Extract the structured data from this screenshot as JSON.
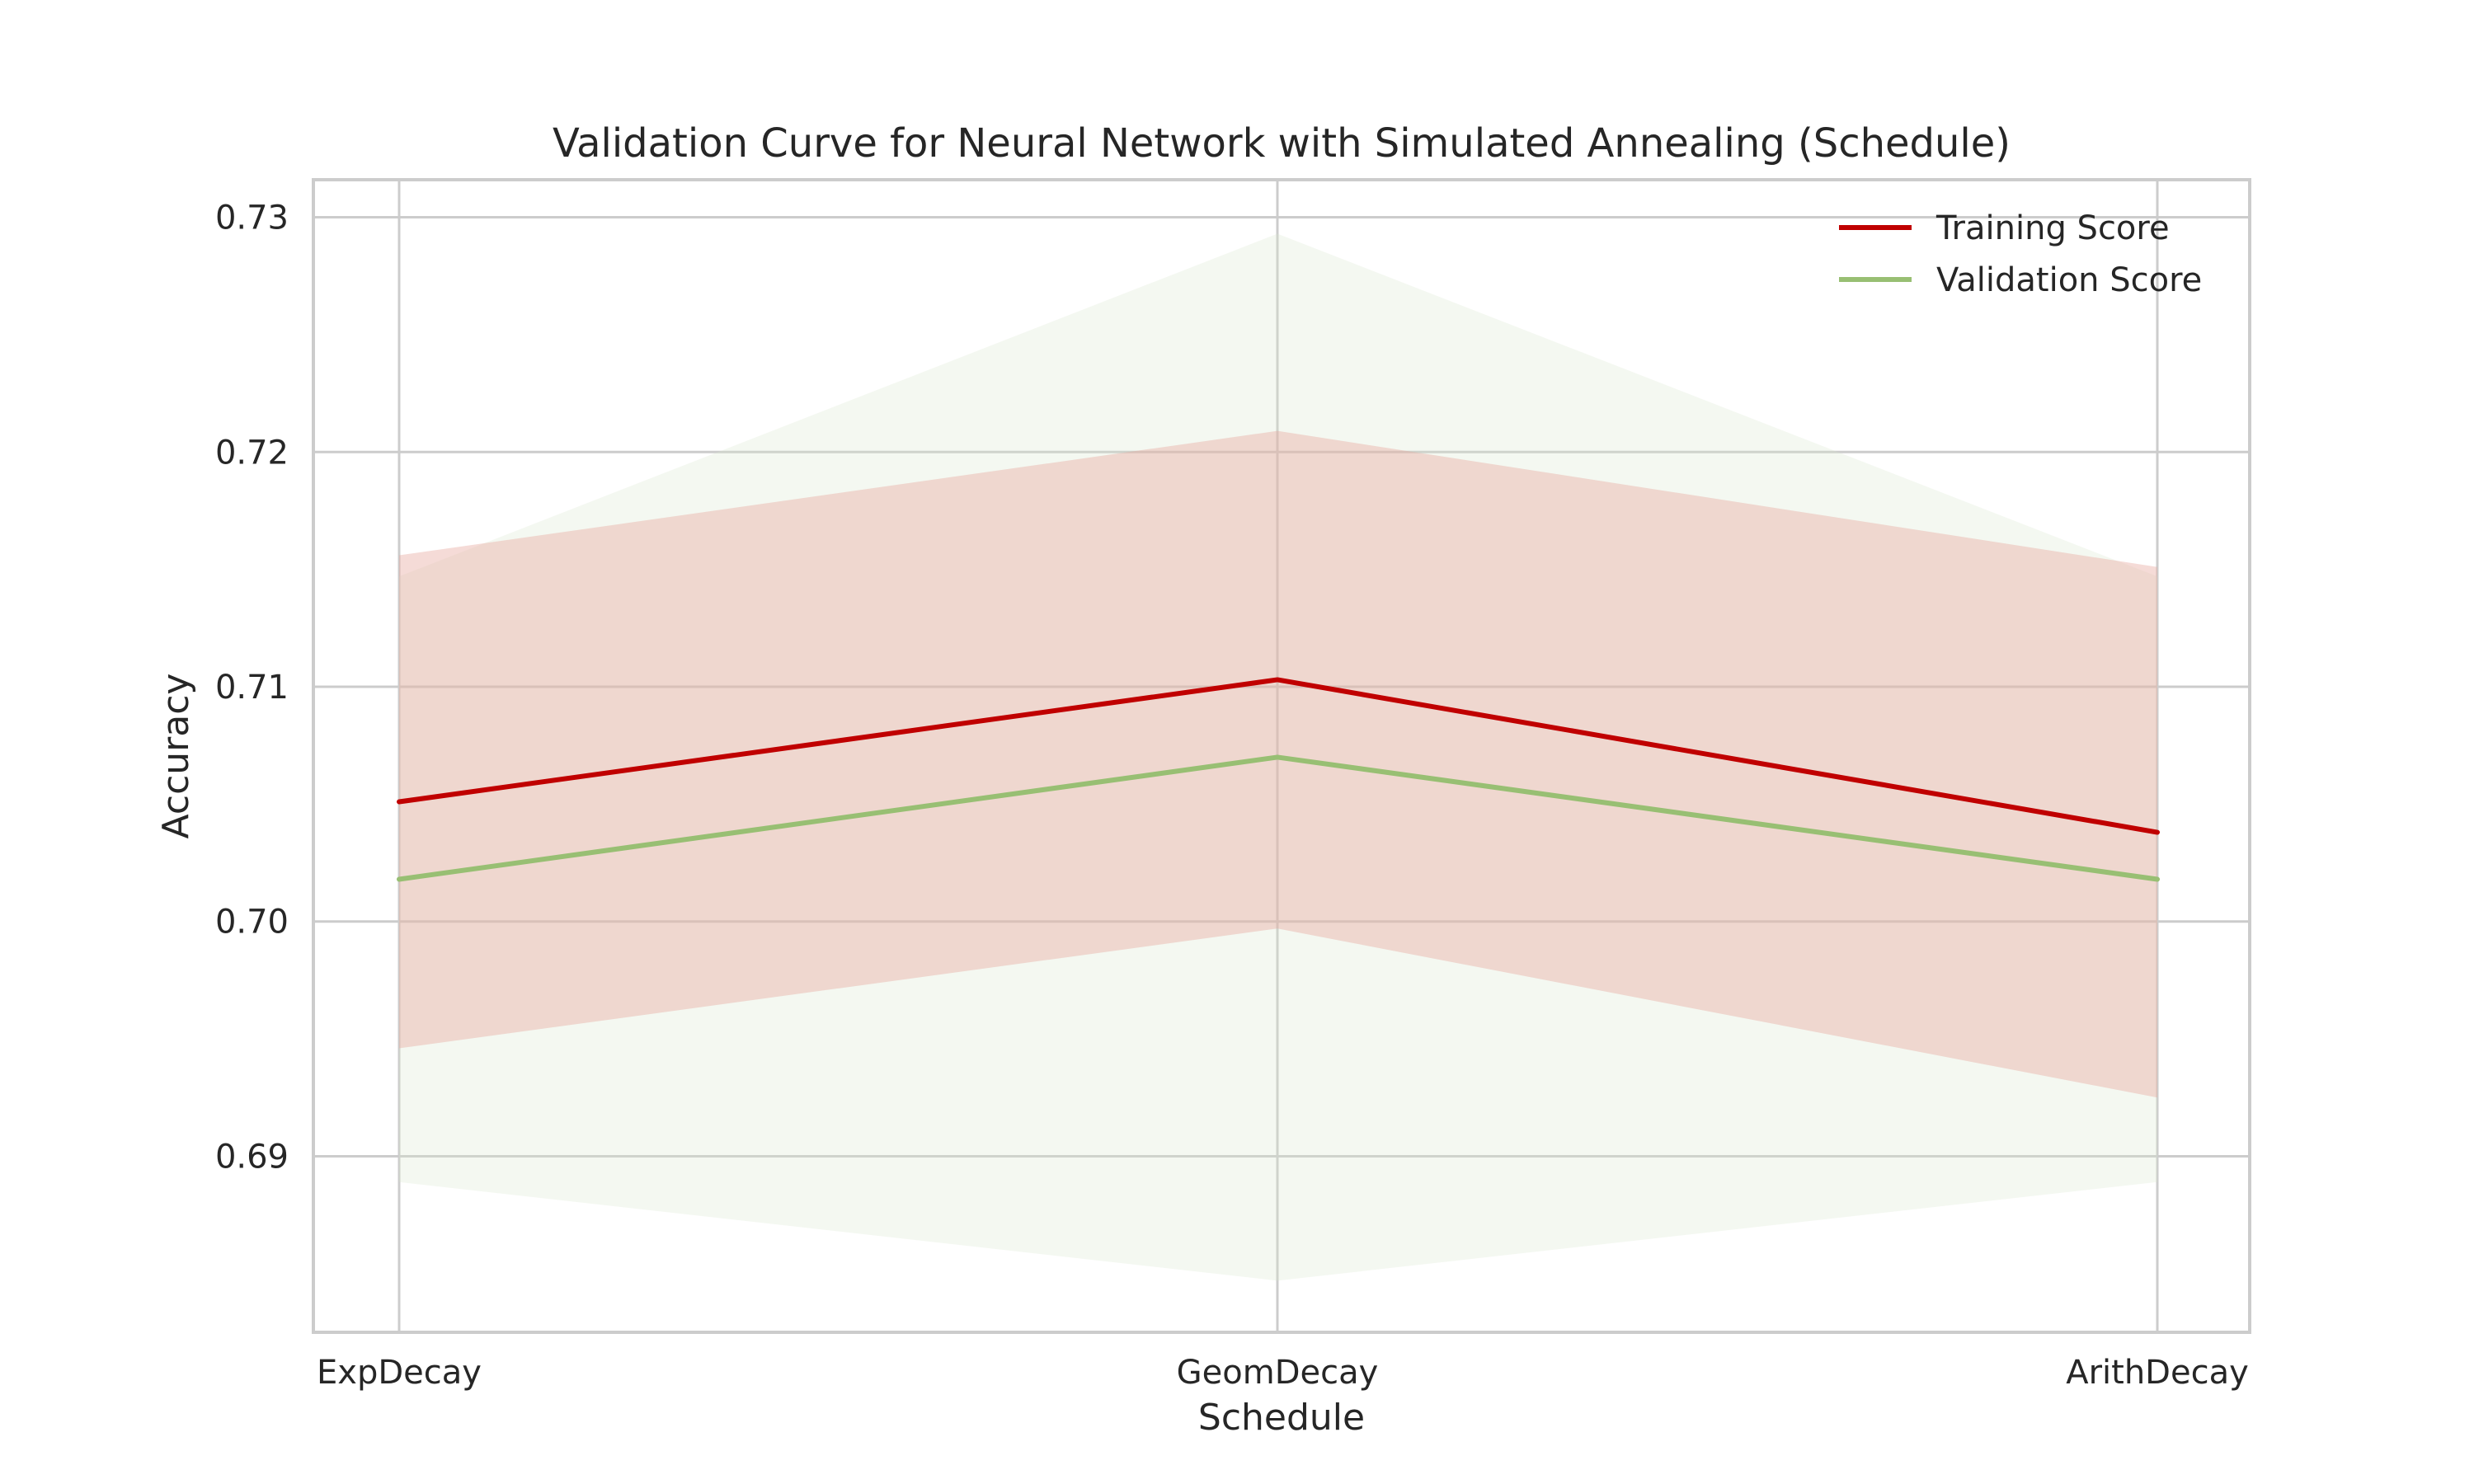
{
  "chart_data": {
    "type": "line",
    "title": "Validation Curve for Neural Network with Simulated Annealing (Schedule)",
    "xlabel": "Schedule",
    "ylabel": "Accuracy",
    "categories": [
      "ExpDecay",
      "GeomDecay",
      "ArithDecay"
    ],
    "ylim": [
      0.6825,
      0.7316
    ],
    "yticks": [
      0.69,
      0.7,
      0.71,
      0.72,
      0.73
    ],
    "ytick_labels": [
      "0.69",
      "0.70",
      "0.71",
      "0.72",
      "0.73"
    ],
    "grid": true,
    "legend_position": "top-right",
    "series": [
      {
        "name": "Training Score",
        "color": "#c00000",
        "values": [
          0.7051,
          0.7103,
          0.7038
        ],
        "band_lower": [
          0.6946,
          0.6997,
          0.6925
        ],
        "band_upper": [
          0.7156,
          0.7209,
          0.7151
        ],
        "band_color": "#e8a9a0"
      },
      {
        "name": "Validation Score",
        "color": "#98bf73",
        "values": [
          0.7018,
          0.707,
          0.7018
        ],
        "band_lower": [
          0.6889,
          0.6847,
          0.6889
        ],
        "band_upper": [
          0.7147,
          0.7293,
          0.7147
        ],
        "band_color": "#d9e6cc"
      }
    ]
  }
}
